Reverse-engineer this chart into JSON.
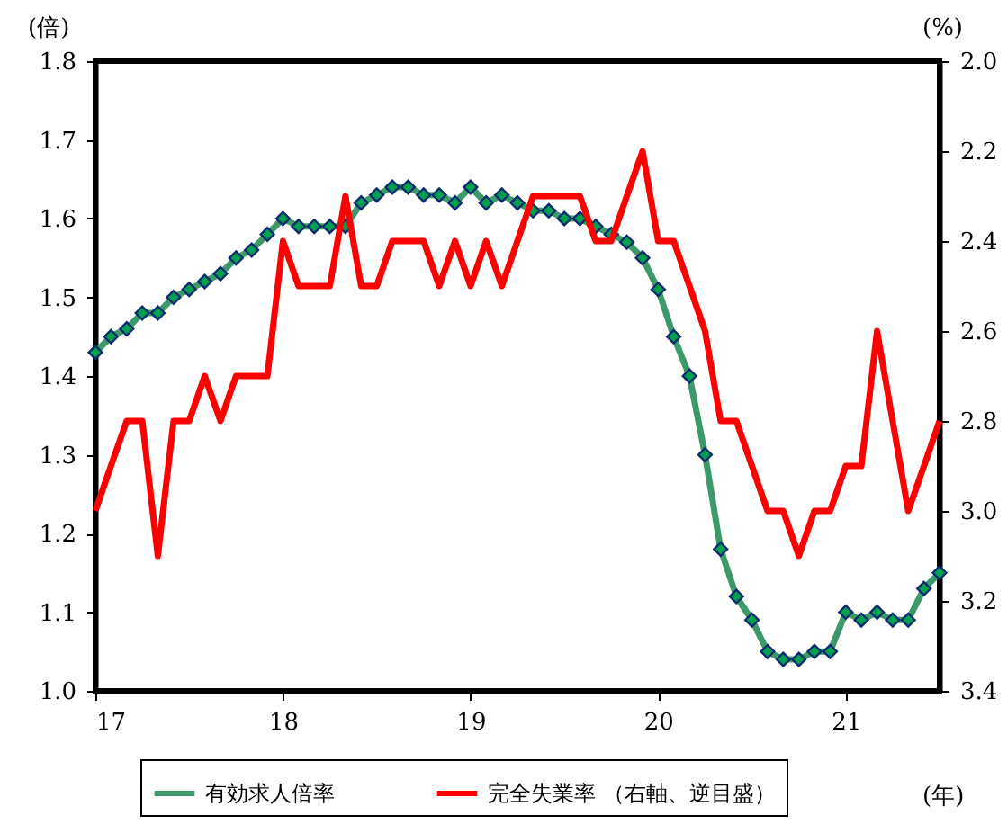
{
  "chart_data": {
    "type": "line",
    "xlabel": "(年)",
    "ylabel": "(倍)",
    "y2label": "(%)",
    "xlim": [
      17,
      21.5
    ],
    "xticks": [
      17,
      18,
      19,
      20,
      21
    ],
    "ylim": [
      1.0,
      1.8
    ],
    "yticks": [
      {
        "value": 1.0,
        "label": "1.0"
      },
      {
        "value": 1.1,
        "label": "1.1"
      },
      {
        "value": 1.2,
        "label": "1.2"
      },
      {
        "value": 1.3,
        "label": "1.3"
      },
      {
        "value": 1.4,
        "label": "1.4"
      },
      {
        "value": 1.5,
        "label": "1.5"
      },
      {
        "value": 1.6,
        "label": "1.6"
      },
      {
        "value": 1.7,
        "label": "1.7"
      },
      {
        "value": 1.8,
        "label": "1.8"
      }
    ],
    "y2lim": [
      3.4,
      2.0
    ],
    "y2ticks": [
      {
        "value": 2.0,
        "label": "2.0"
      },
      2.2,
      2.4,
      2.6,
      2.8,
      {
        "value": 3.0,
        "label": "3.0"
      },
      3.2,
      3.4
    ],
    "x": [
      17.0,
      17.083,
      17.167,
      17.25,
      17.333,
      17.417,
      17.5,
      17.583,
      17.667,
      17.75,
      17.833,
      17.917,
      18.0,
      18.083,
      18.167,
      18.25,
      18.333,
      18.417,
      18.5,
      18.583,
      18.667,
      18.75,
      18.833,
      18.917,
      19.0,
      19.083,
      19.167,
      19.25,
      19.333,
      19.417,
      19.5,
      19.583,
      19.667,
      19.75,
      19.833,
      19.917,
      20.0,
      20.083,
      20.167,
      20.25,
      20.333,
      20.417,
      20.5,
      20.583,
      20.667,
      20.75,
      20.833,
      20.917,
      21.0,
      21.083,
      21.167,
      21.25,
      21.333,
      21.417,
      21.5
    ],
    "series": [
      {
        "name": "有効求人倍率",
        "color": "#3c9a6a",
        "marker": "diamond",
        "values": [
          1.43,
          1.45,
          1.46,
          1.48,
          1.48,
          1.5,
          1.51,
          1.52,
          1.53,
          1.55,
          1.56,
          1.58,
          1.6,
          1.59,
          1.59,
          1.59,
          1.59,
          1.62,
          1.63,
          1.64,
          1.64,
          1.63,
          1.63,
          1.62,
          1.64,
          1.62,
          1.63,
          1.62,
          1.61,
          1.61,
          1.6,
          1.6,
          1.59,
          1.58,
          1.57,
          1.55,
          1.51,
          1.45,
          1.4,
          1.3,
          1.18,
          1.12,
          1.09,
          1.05,
          1.04,
          1.04,
          1.05,
          1.05,
          1.1,
          1.09,
          1.1,
          1.09,
          1.09,
          1.13,
          1.15
        ]
      },
      {
        "name": "完全失業率 （右軸、逆目盛）",
        "color": "#ff0000",
        "marker": "none",
        "axis": "y2",
        "values": [
          3.0,
          2.9,
          2.8,
          2.8,
          3.1,
          2.8,
          2.8,
          2.7,
          2.8,
          2.7,
          2.7,
          2.7,
          2.4,
          2.5,
          2.5,
          2.5,
          2.3,
          2.5,
          2.5,
          2.4,
          2.4,
          2.4,
          2.5,
          2.4,
          2.5,
          2.4,
          2.5,
          2.4,
          2.3,
          2.3,
          2.3,
          2.3,
          2.4,
          2.4,
          2.3,
          2.2,
          2.4,
          2.4,
          2.5,
          2.6,
          2.8,
          2.8,
          2.9,
          3.0,
          3.0,
          3.1,
          3.0,
          3.0,
          2.9,
          2.9,
          2.6,
          2.8,
          3.0,
          2.9,
          2.8
        ]
      }
    ],
    "legend": "bottom",
    "grid": false
  }
}
